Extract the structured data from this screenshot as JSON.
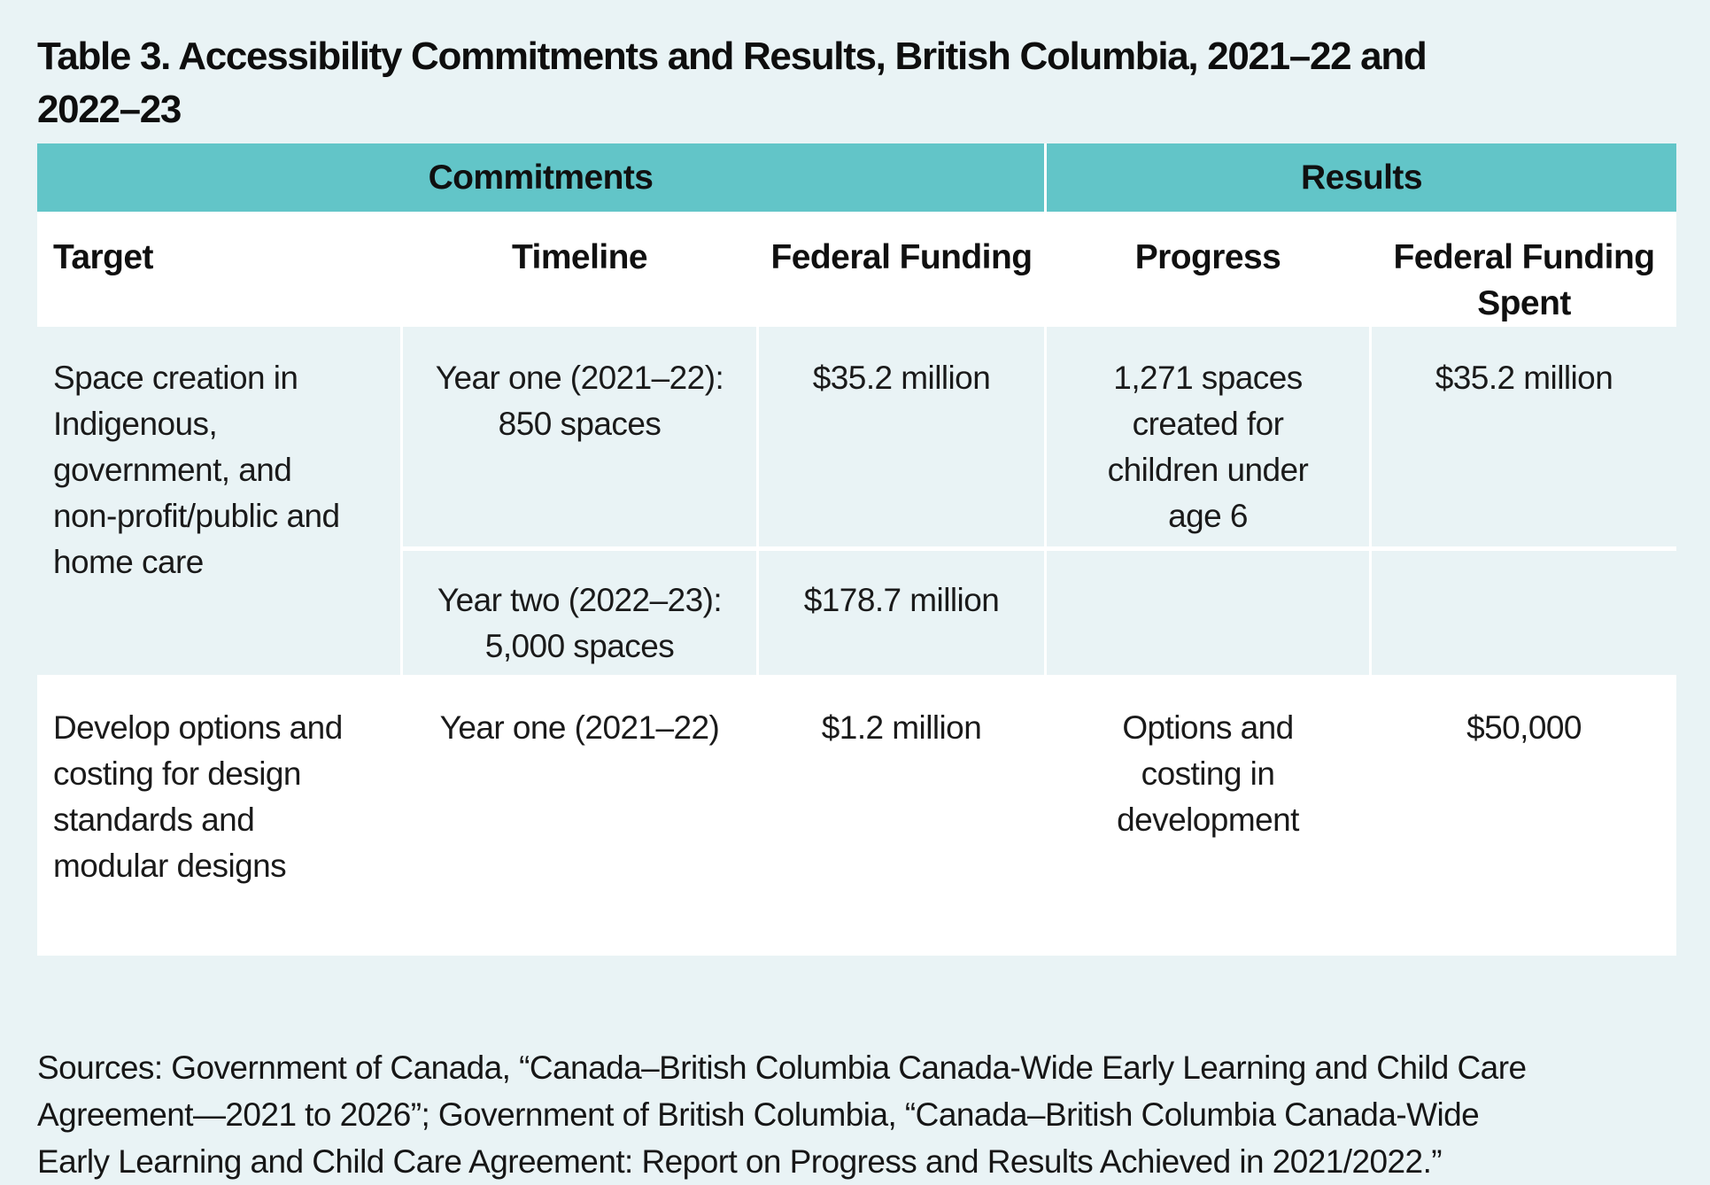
{
  "page": {
    "background_color": "#e9f3f5",
    "accent_teal": "#62c5c8",
    "divider_color": "#ffffff",
    "text_color": "#1a1a1a"
  },
  "title": {
    "line1": "Table 3. Accessibility Commitments and Results, British Columbia, 2021–22 and",
    "line2": "2022–23"
  },
  "table": {
    "group_headers": [
      {
        "label": "Commitments"
      },
      {
        "label": "Results"
      }
    ],
    "columns": [
      "Target",
      "Timeline",
      "Federal Funding",
      "Progress",
      "Federal Funding Spent"
    ],
    "rows": [
      {
        "target": "Space creation in Indigenous, government, and non-profit/public and home care",
        "sub_rows": [
          {
            "timeline": "Year one (2021–22): 850 spaces",
            "federal_funding": "$35.2 million",
            "progress": "1,271 spaces created for children under age 6",
            "federal_funding_spent": "$35.2 million"
          },
          {
            "timeline": "Year two (2022–23): 5,000 spaces",
            "federal_funding": "$178.7 million",
            "progress": "",
            "federal_funding_spent": ""
          }
        ]
      },
      {
        "target": "Develop options and costing for design standards and modular designs",
        "sub_rows": [
          {
            "timeline": "Year one (2021–22)",
            "federal_funding": "$1.2 million",
            "progress": "Options and costing in development",
            "federal_funding_spent": "$50,000"
          }
        ]
      }
    ]
  },
  "sources": {
    "lines": [
      "Sources: Government of Canada, “Canada–British Columbia Canada-Wide Early Learning and Child Care",
      "Agreement—2021 to 2026”; Government of British Columbia, “Canada–British Columbia Canada-Wide",
      "Early Learning and Child Care Agreement: Report on Progress and Results Achieved in 2021/2022.”"
    ]
  }
}
